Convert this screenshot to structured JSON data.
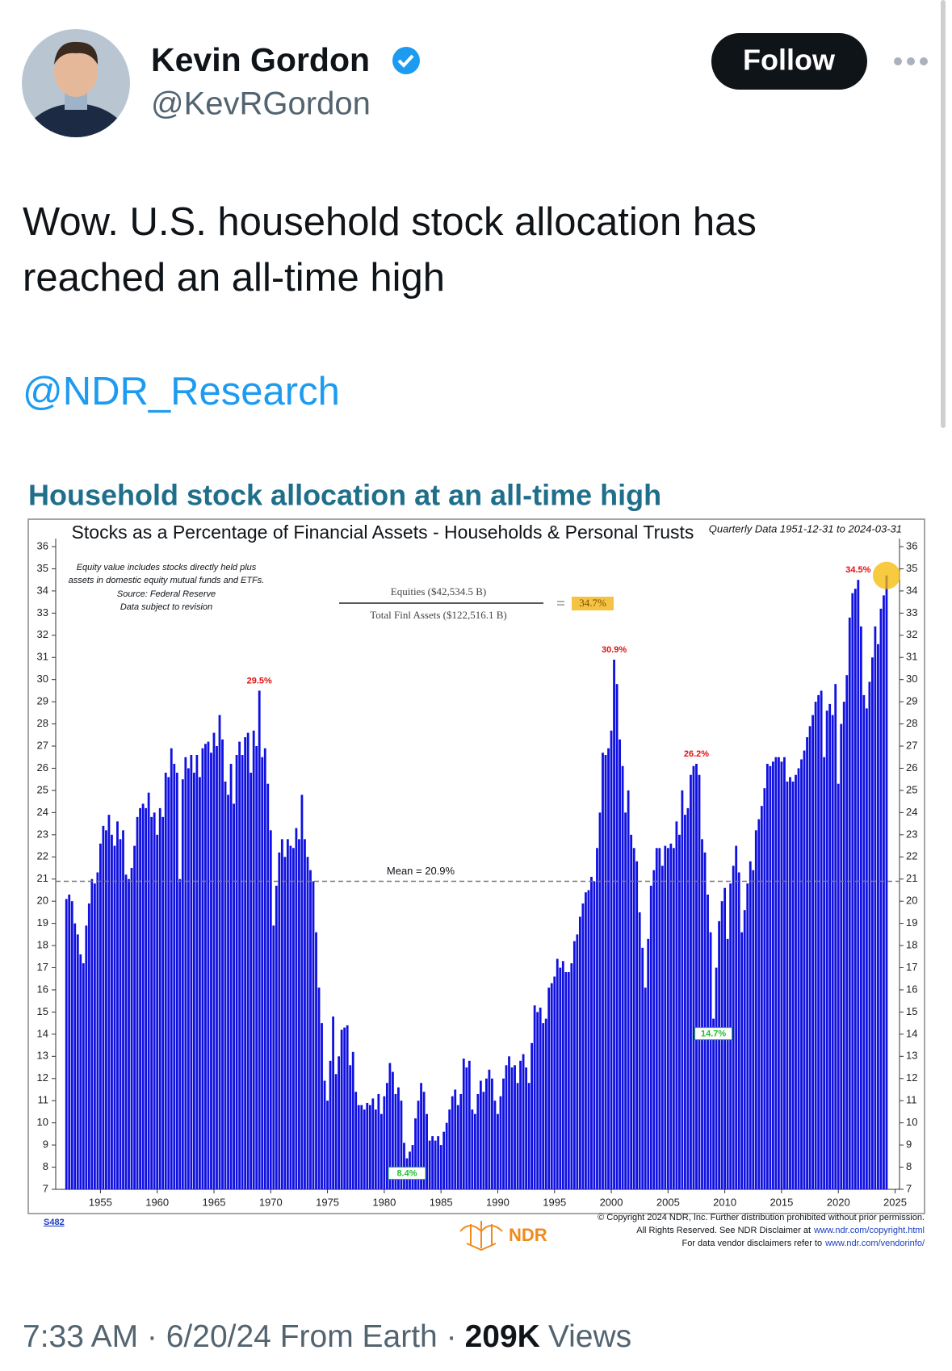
{
  "user": {
    "name": "Kevin Gordon",
    "handle": "@KevRGordon"
  },
  "follow": "Follow",
  "text": [
    "Wow. U.S. household stock allocation has",
    "reached an all-time high"
  ],
  "mention": "@NDR_Research",
  "chart_headline": "Household stock allocation at an all-time high",
  "chart_data": {
    "type": "bar",
    "title": "Stocks as a Percentage of Financial Assets - Households & Personal Trusts",
    "subtitle": "Quarterly Data 1951-12-31 to 2024-03-31",
    "notes": [
      "Equity value includes stocks directly held plus",
      "assets in domestic equity mutual funds and ETFs.",
      "Source: Federal Reserve",
      "Data subject to revision"
    ],
    "formula": {
      "numerator": "Equities ($42,534.5 B)",
      "denominator": "Total Finl Assets ($122,516.1 B)",
      "result": "34.7%"
    },
    "mean": {
      "value": 20.9,
      "label": "Mean = 20.9%"
    },
    "annotations": [
      {
        "x": 1969,
        "value": 29.5,
        "label": "29.5%",
        "color": "#e01010",
        "box": false
      },
      {
        "x": 2000.25,
        "value": 30.9,
        "label": "30.9%",
        "color": "#e01010",
        "box": false
      },
      {
        "x": 2007.5,
        "value": 26.2,
        "label": "26.2%",
        "color": "#e01010",
        "box": false
      },
      {
        "x": 2021.75,
        "value": 34.5,
        "label": "34.5%",
        "color": "#e01010",
        "box": false
      },
      {
        "x": 1982,
        "value": 8.4,
        "label": "8.4%",
        "color": "#22c030",
        "box": true
      },
      {
        "x": 2009,
        "value": 14.7,
        "label": "14.7%",
        "color": "#22c030",
        "box": true
      }
    ],
    "color": "#1010e0",
    "xlim": [
      1951.06,
      2025.39
    ],
    "xticks": [
      1955,
      1960,
      1965,
      1970,
      1975,
      1980,
      1985,
      1990,
      1995,
      2000,
      2005,
      2010,
      2015,
      2020,
      2025
    ],
    "ylim": [
      7,
      36
    ],
    "yticks": [
      7,
      8,
      9,
      10,
      11,
      12,
      13,
      14,
      15,
      16,
      17,
      18,
      19,
      20,
      21,
      22,
      23,
      24,
      25,
      26,
      27,
      28,
      29,
      30,
      31,
      32,
      33,
      34,
      35,
      36
    ],
    "x": [
      1952,
      1952.25,
      1952.5,
      1952.75,
      1953,
      1953.25,
      1953.5,
      1953.75,
      1954,
      1954.25,
      1954.5,
      1954.75,
      1955,
      1955.25,
      1955.5,
      1955.75,
      1956,
      1956.25,
      1956.5,
      1956.75,
      1957,
      1957.25,
      1957.5,
      1957.75,
      1958,
      1958.25,
      1958.5,
      1958.75,
      1959,
      1959.25,
      1959.5,
      1959.75,
      1960,
      1960.25,
      1960.5,
      1960.75,
      1961,
      1961.25,
      1961.5,
      1961.75,
      1962,
      1962.25,
      1962.5,
      1962.75,
      1963,
      1963.25,
      1963.5,
      1963.75,
      1964,
      1964.25,
      1964.5,
      1964.75,
      1965,
      1965.25,
      1965.5,
      1965.75,
      1966,
      1966.25,
      1966.5,
      1966.75,
      1967,
      1967.25,
      1967.5,
      1967.75,
      1968,
      1968.25,
      1968.5,
      1968.75,
      1969,
      1969.25,
      1969.5,
      1969.75,
      1970,
      1970.25,
      1970.5,
      1970.75,
      1971,
      1971.25,
      1971.5,
      1971.75,
      1972,
      1972.25,
      1972.5,
      1972.75,
      1973,
      1973.25,
      1973.5,
      1973.75,
      1974,
      1974.25,
      1974.5,
      1974.75,
      1975,
      1975.25,
      1975.5,
      1975.75,
      1976,
      1976.25,
      1976.5,
      1976.75,
      1977,
      1977.25,
      1977.5,
      1977.75,
      1978,
      1978.25,
      1978.5,
      1978.75,
      1979,
      1979.25,
      1979.5,
      1979.75,
      1980,
      1980.25,
      1980.5,
      1980.75,
      1981,
      1981.25,
      1981.5,
      1981.75,
      1982,
      1982.25,
      1982.5,
      1982.75,
      1983,
      1983.25,
      1983.5,
      1983.75,
      1984,
      1984.25,
      1984.5,
      1984.75,
      1985,
      1985.25,
      1985.5,
      1985.75,
      1986,
      1986.25,
      1986.5,
      1986.75,
      1987,
      1987.25,
      1987.5,
      1987.75,
      1988,
      1988.25,
      1988.5,
      1988.75,
      1989,
      1989.25,
      1989.5,
      1989.75,
      1990,
      1990.25,
      1990.5,
      1990.75,
      1991,
      1991.25,
      1991.5,
      1991.75,
      1992,
      1992.25,
      1992.5,
      1992.75,
      1993,
      1993.25,
      1993.5,
      1993.75,
      1994,
      1994.25,
      1994.5,
      1994.75,
      1995,
      1995.25,
      1995.5,
      1995.75,
      1996,
      1996.25,
      1996.5,
      1996.75,
      1997,
      1997.25,
      1997.5,
      1997.75,
      1998,
      1998.25,
      1998.5,
      1998.75,
      1999,
      1999.25,
      1999.5,
      1999.75,
      2000,
      2000.25,
      2000.5,
      2000.75,
      2001,
      2001.25,
      2001.5,
      2001.75,
      2002,
      2002.25,
      2002.5,
      2002.75,
      2003,
      2003.25,
      2003.5,
      2003.75,
      2004,
      2004.25,
      2004.5,
      2004.75,
      2005,
      2005.25,
      2005.5,
      2005.75,
      2006,
      2006.25,
      2006.5,
      2006.75,
      2007,
      2007.25,
      2007.5,
      2007.75,
      2008,
      2008.25,
      2008.5,
      2008.75,
      2009,
      2009.25,
      2009.5,
      2009.75,
      2010,
      2010.25,
      2010.5,
      2010.75,
      2011,
      2011.25,
      2011.5,
      2011.75,
      2012,
      2012.25,
      2012.5,
      2012.75,
      2013,
      2013.25,
      2013.5,
      2013.75,
      2014,
      2014.25,
      2014.5,
      2014.75,
      2015,
      2015.25,
      2015.5,
      2015.75,
      2016,
      2016.25,
      2016.5,
      2016.75,
      2017,
      2017.25,
      2017.5,
      2017.75,
      2018,
      2018.25,
      2018.5,
      2018.75,
      2019,
      2019.25,
      2019.5,
      2019.75,
      2020,
      2020.25,
      2020.5,
      2020.75,
      2021,
      2021.25,
      2021.5,
      2021.75,
      2022,
      2022.25,
      2022.5,
      2022.75,
      2023,
      2023.25,
      2023.5,
      2023.75,
      2024,
      2024.25
    ],
    "values": [
      20.1,
      20.3,
      20.0,
      19.0,
      18.5,
      17.6,
      17.2,
      18.9,
      19.9,
      21.0,
      20.8,
      21.3,
      22.6,
      23.4,
      23.2,
      23.9,
      23.0,
      22.5,
      23.6,
      22.8,
      23.2,
      21.2,
      21.0,
      21.5,
      22.5,
      23.8,
      24.2,
      24.4,
      24.2,
      24.9,
      23.8,
      24.0,
      23.0,
      24.2,
      23.8,
      25.8,
      25.6,
      26.9,
      26.2,
      25.8,
      21.0,
      25.5,
      26.5,
      26.0,
      26.6,
      25.8,
      26.6,
      25.6,
      26.9,
      27.1,
      27.2,
      26.7,
      27.6,
      27.0,
      28.4,
      27.3,
      25.4,
      24.8,
      26.2,
      24.4,
      26.6,
      27.2,
      26.6,
      27.4,
      27.6,
      25.8,
      27.7,
      27.0,
      29.5,
      26.5,
      26.9,
      25.3,
      23.2,
      18.9,
      20.7,
      22.2,
      22.8,
      22.0,
      22.8,
      22.5,
      22.4,
      23.3,
      22.8,
      24.8,
      22.8,
      22.0,
      21.4,
      20.9,
      18.6,
      16.1,
      14.5,
      11.9,
      11.0,
      12.8,
      14.8,
      12.2,
      13.0,
      14.2,
      14.3,
      14.4,
      12.6,
      13.2,
      11.4,
      10.8,
      10.8,
      10.6,
      10.9,
      10.8,
      11.1,
      10.6,
      11.3,
      10.4,
      11.2,
      11.8,
      12.7,
      12.3,
      11.3,
      11.6,
      11.0,
      9.1,
      8.4,
      8.7,
      9.0,
      10.2,
      11.0,
      11.8,
      11.4,
      10.4,
      9.2,
      9.4,
      9.2,
      9.4,
      9.0,
      9.6,
      10.0,
      10.6,
      11.2,
      11.5,
      10.8,
      11.3,
      12.9,
      12.5,
      12.8,
      10.6,
      10.4,
      11.3,
      11.9,
      11.4,
      12.0,
      12.4,
      12.0,
      11.0,
      10.4,
      11.2,
      12.0,
      12.6,
      13.0,
      12.5,
      12.6,
      11.8,
      12.8,
      13.1,
      12.5,
      11.8,
      13.6,
      15.3,
      15.0,
      15.2,
      14.5,
      14.7,
      16.1,
      16.3,
      16.6,
      17.4,
      17.0,
      17.3,
      16.8,
      16.8,
      17.2,
      18.2,
      18.5,
      19.3,
      19.9,
      20.4,
      20.5,
      21.1,
      20.9,
      22.4,
      24.0,
      26.7,
      26.6,
      26.9,
      27.7,
      30.9,
      29.8,
      27.3,
      26.1,
      24.0,
      25.0,
      23.0,
      22.4,
      21.8,
      19.5,
      17.9,
      16.1,
      18.3,
      20.7,
      21.4,
      22.4,
      22.4,
      21.6,
      22.5,
      22.4,
      22.6,
      22.4,
      23.6,
      23.0,
      25.0,
      23.9,
      24.2,
      25.7,
      26.1,
      26.2,
      25.7,
      22.8,
      22.2,
      20.3,
      18.6,
      14.7,
      17.0,
      19.1,
      20.0,
      20.6,
      18.3,
      20.8,
      21.6,
      22.5,
      21.3,
      18.6,
      19.6,
      20.8,
      21.8,
      21.4,
      23.2,
      23.7,
      24.3,
      25.1,
      26.2,
      26.1,
      26.3,
      26.5,
      26.5,
      26.3,
      26.5,
      25.4,
      25.6,
      25.4,
      25.7,
      26.0,
      26.4,
      26.8,
      27.4,
      27.9,
      28.4,
      29.0,
      29.3,
      29.5,
      26.5,
      28.6,
      28.9,
      28.4,
      29.8,
      25.3,
      28.0,
      29.0,
      30.2,
      32.8,
      33.9,
      34.1,
      34.5,
      32.4,
      29.3,
      28.7,
      29.9,
      31.0,
      32.4,
      31.6,
      33.2,
      33.8,
      34.7
    ]
  },
  "chart_footer": {
    "code": "S482",
    "brand": "NDR",
    "line1": "© Copyright 2024 NDR, Inc. Further distribution prohibited without prior permission.",
    "line2": "All Rights Reserved. See NDR Disclaimer at",
    "link2": "www.ndr.com/copyright.html",
    "line3": "For data vendor disclaimers refer to",
    "link3": "www.ndr.com/vendorinfo/"
  },
  "timestamp": "7:33 AM · 6/20/24 From Earth ·",
  "views": "209K",
  "views_label": "Views"
}
